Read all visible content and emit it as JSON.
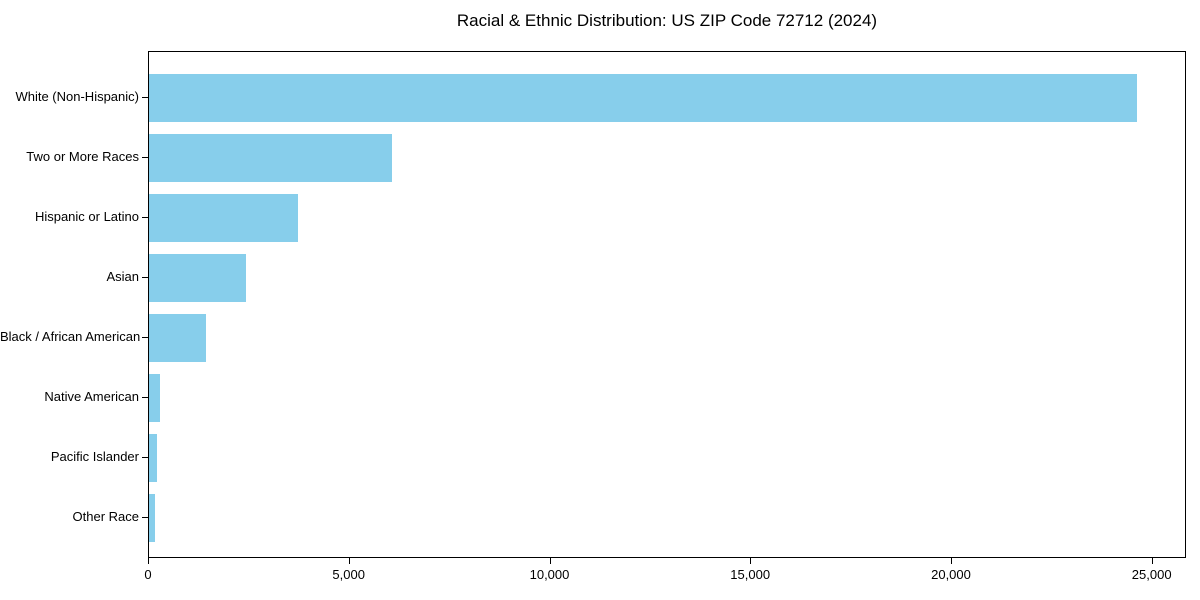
{
  "figure": {
    "title": "Racial & Ethnic Distribution: US ZIP Code 72712 (2024)"
  },
  "chart_data": {
    "type": "bar",
    "orientation": "horizontal",
    "title": "Racial & Ethnic Distribution: US ZIP Code 72712 (2024)",
    "categories": [
      "White (Non-Hispanic)",
      "Two or More Races",
      "Hispanic or Latino",
      "Asian",
      "Black / African American",
      "Native American",
      "Pacific Islander",
      "Other Race"
    ],
    "values": [
      24600,
      6050,
      3710,
      2410,
      1410,
      280,
      190,
      160
    ],
    "xlabel": "",
    "ylabel": "",
    "xlim": [
      0,
      25000
    ],
    "xticks": [
      0,
      5000,
      10000,
      15000,
      20000,
      25000
    ],
    "xtick_labels": [
      "0",
      "5,000",
      "10,000",
      "15,000",
      "20,000",
      "25,000"
    ],
    "bar_color": "#87CEEB",
    "axis_color": "#000000",
    "text_color": "#000000",
    "background_color": "#ffffff",
    "grid": false,
    "legend": null
  }
}
